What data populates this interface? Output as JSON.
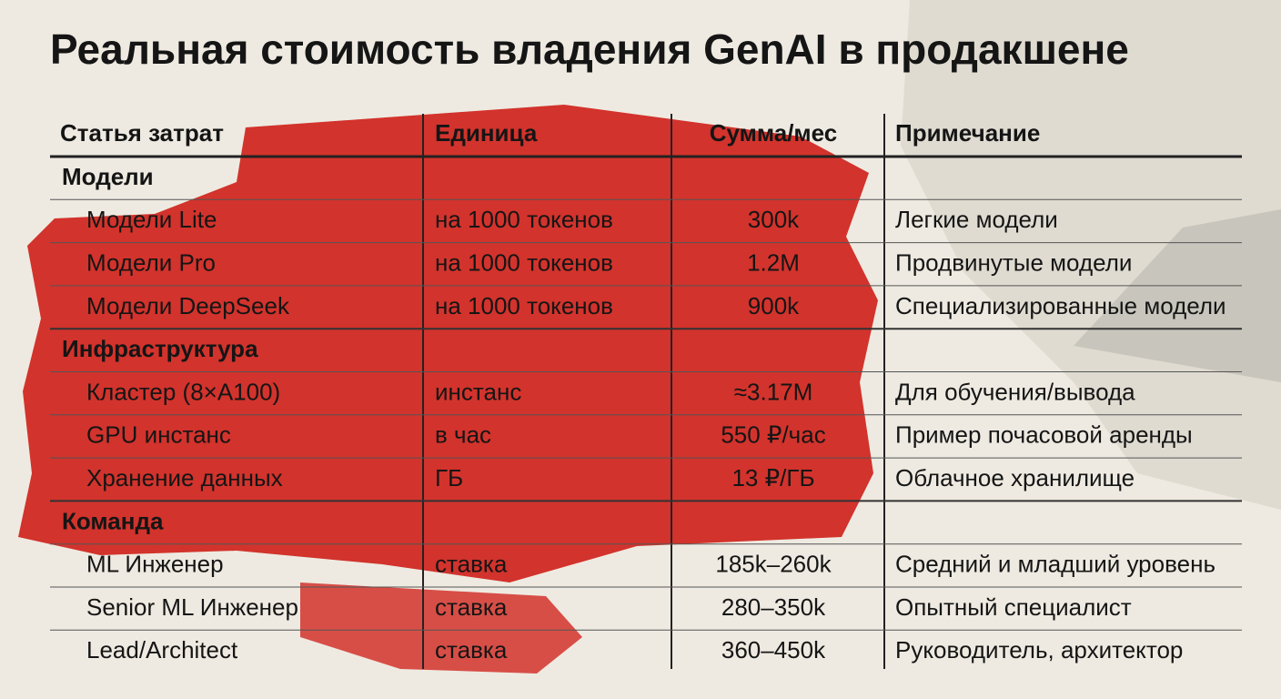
{
  "title": "Реальная стоимость владения GenAI в продакшене",
  "table": {
    "columns": [
      "Статья затрат",
      "Единица",
      "Сумма/мес",
      "Примечание"
    ],
    "sections": [
      {
        "name": "Модели",
        "rows": [
          [
            "Модели Lite",
            "на 1000 токенов",
            "300k",
            "Легкие модели"
          ],
          [
            "Модели Pro",
            "на 1000 токенов",
            "1.2M",
            "Продвинутые модели"
          ],
          [
            "Модели DeepSeek",
            "на 1000 токенов",
            "900k",
            "Специализированные модели"
          ]
        ]
      },
      {
        "name": "Инфраструктура",
        "rows": [
          [
            "Кластер (8×A100)",
            "инстанс",
            "≈3.17M",
            "Для обучения/вывода"
          ],
          [
            "GPU инстанс",
            "в час",
            "550 ₽/час",
            "Пример почасовой аренды"
          ],
          [
            "Хранение данных",
            "ГБ",
            "13 ₽/ГБ",
            "Облачное хранилище"
          ]
        ]
      },
      {
        "name": "Команда",
        "rows": [
          [
            "ML Инженер",
            "ставка",
            "185k–260k",
            "Средний и младший уровень"
          ],
          [
            "Senior ML Инженер",
            "ставка",
            "280–350k",
            "Опытный специалист"
          ],
          [
            "Lead/Architect",
            "ставка",
            "360–450k",
            "Руководитель, архитектор"
          ]
        ]
      }
    ]
  }
}
